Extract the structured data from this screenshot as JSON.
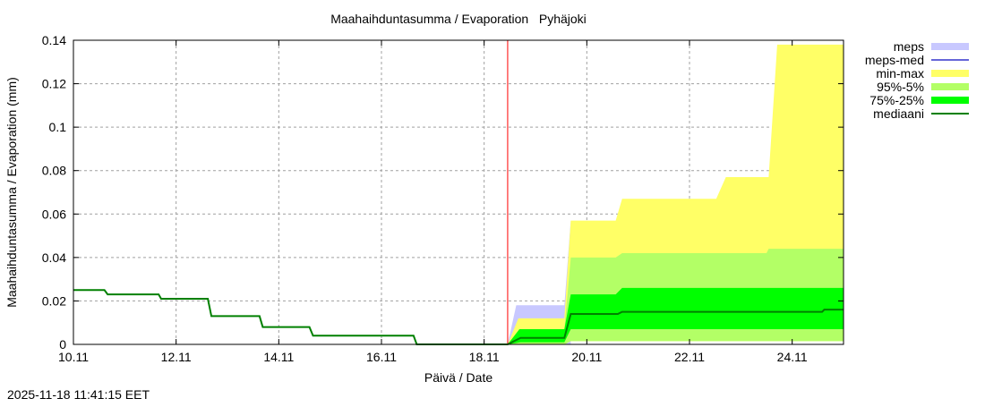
{
  "chart_data": {
    "type": "area",
    "title": "Maahaihduntasumma / Evaporation   Pyhäjoki",
    "xlabel": "Päivä / Date",
    "ylabel": "Maahaihduntasumma / Evaporation (mm)",
    "xlim": [
      "2025-11-10T00:00",
      "2025-11-25T00:00"
    ],
    "ylim": [
      0,
      0.14
    ],
    "x_ticks": [
      {
        "t": "2025-11-10T00:00",
        "label": "10.11"
      },
      {
        "t": "2025-11-12T00:00",
        "label": "12.11"
      },
      {
        "t": "2025-11-14T00:00",
        "label": "14.11"
      },
      {
        "t": "2025-11-16T00:00",
        "label": "16.11"
      },
      {
        "t": "2025-11-18T00:00",
        "label": "18.11"
      },
      {
        "t": "2025-11-20T00:00",
        "label": "20.11"
      },
      {
        "t": "2025-11-22T00:00",
        "label": "22.11"
      },
      {
        "t": "2025-11-24T00:00",
        "label": "24.11"
      }
    ],
    "y_ticks": [
      {
        "v": 0,
        "label": "0"
      },
      {
        "v": 0.02,
        "label": "0.02"
      },
      {
        "v": 0.04,
        "label": "0.04"
      },
      {
        "v": 0.06,
        "label": "0.06"
      },
      {
        "v": 0.08,
        "label": "0.08"
      },
      {
        "v": 0.1,
        "label": "0.1"
      },
      {
        "v": 0.12,
        "label": "0.12"
      },
      {
        "v": 0.14,
        "label": "0.14"
      }
    ],
    "grid": true,
    "legend_position": "right",
    "forecast_start": "2025-11-18T11:00",
    "forecast_line_color": "#ff0000",
    "bands": [
      {
        "name": "meps",
        "color": "#c8c8ff",
        "upper": [
          [
            "2025-11-18T11:00",
            0
          ],
          [
            "2025-11-18T15:00",
            0.018
          ],
          [
            "2025-11-19T13:30",
            0.018
          ],
          [
            "2025-11-19T16:30",
            0.057
          ]
        ],
        "lower": [
          [
            "2025-11-18T11:00",
            0
          ],
          [
            "2025-11-19T16:30",
            0
          ]
        ]
      },
      {
        "name": "min-max",
        "color": "#ffff66",
        "upper": [
          [
            "2025-11-18T11:00",
            0
          ],
          [
            "2025-11-18T16:00",
            0.012
          ],
          [
            "2025-11-19T13:30",
            0.012
          ],
          [
            "2025-11-19T16:30",
            0.057
          ],
          [
            "2025-11-20T13:30",
            0.057
          ],
          [
            "2025-11-20T16:30",
            0.067
          ],
          [
            "2025-11-22T12:30",
            0.067
          ],
          [
            "2025-11-22T17:00",
            0.077
          ],
          [
            "2025-11-23T13:00",
            0.077
          ],
          [
            "2025-11-23T17:00",
            0.138
          ],
          [
            "2025-11-25T00:00",
            0.138
          ]
        ],
        "lower": [
          [
            "2025-11-18T11:00",
            0
          ],
          [
            "2025-11-19T13:30",
            0
          ],
          [
            "2025-11-19T16:30",
            0.0015
          ],
          [
            "2025-11-25T00:00",
            0.0015
          ]
        ]
      },
      {
        "name": "95%-5%",
        "color": "#b3ff66",
        "upper": [
          [
            "2025-11-18T11:00",
            0
          ],
          [
            "2025-11-18T16:30",
            0.007
          ],
          [
            "2025-11-19T13:30",
            0.007
          ],
          [
            "2025-11-19T16:30",
            0.04
          ],
          [
            "2025-11-20T13:30",
            0.04
          ],
          [
            "2025-11-20T16:30",
            0.042
          ],
          [
            "2025-11-23T12:00",
            0.042
          ],
          [
            "2025-11-23T13:00",
            0.044
          ],
          [
            "2025-11-25T00:00",
            0.044
          ]
        ],
        "lower": [
          [
            "2025-11-18T11:00",
            0
          ],
          [
            "2025-11-19T13:30",
            0
          ],
          [
            "2025-11-19T16:30",
            0.0015
          ],
          [
            "2025-11-25T00:00",
            0.0015
          ]
        ]
      },
      {
        "name": "75%-25%",
        "color": "#00ff00",
        "upper": [
          [
            "2025-11-18T11:00",
            0
          ],
          [
            "2025-11-18T16:30",
            0.007
          ],
          [
            "2025-11-19T13:30",
            0.007
          ],
          [
            "2025-11-19T16:30",
            0.023
          ],
          [
            "2025-11-20T13:30",
            0.023
          ],
          [
            "2025-11-20T16:30",
            0.026
          ],
          [
            "2025-11-25T00:00",
            0.026
          ]
        ],
        "lower": [
          [
            "2025-11-18T11:00",
            0
          ],
          [
            "2025-11-18T17:00",
            0.001
          ],
          [
            "2025-11-19T13:30",
            0.001
          ],
          [
            "2025-11-19T16:30",
            0.007
          ],
          [
            "2025-11-25T00:00",
            0.007
          ]
        ]
      }
    ],
    "lines": [
      {
        "name": "meps-med",
        "color": "#3333cc",
        "points": []
      },
      {
        "name": "mediaani",
        "color": "#008000",
        "points": [
          [
            "2025-11-10T00:00",
            0.025
          ],
          [
            "2025-11-10T14:30",
            0.025
          ],
          [
            "2025-11-10T16:00",
            0.023
          ],
          [
            "2025-11-11T15:50",
            0.023
          ],
          [
            "2025-11-11T17:00",
            0.021
          ],
          [
            "2025-11-12T14:50",
            0.021
          ],
          [
            "2025-11-12T16:30",
            0.013
          ],
          [
            "2025-11-13T15:00",
            0.013
          ],
          [
            "2025-11-13T16:30",
            0.008
          ],
          [
            "2025-11-14T14:20",
            0.008
          ],
          [
            "2025-11-14T16:00",
            0.004
          ],
          [
            "2025-11-16T15:00",
            0.004
          ],
          [
            "2025-11-16T16:30",
            0
          ],
          [
            "2025-11-18T11:00",
            0
          ],
          [
            "2025-11-18T17:00",
            0.003
          ],
          [
            "2025-11-19T13:30",
            0.003
          ],
          [
            "2025-11-19T16:30",
            0.014
          ],
          [
            "2025-11-20T14:30",
            0.014
          ],
          [
            "2025-11-20T16:30",
            0.015
          ],
          [
            "2025-11-24T14:00",
            0.015
          ],
          [
            "2025-11-24T15:00",
            0.016
          ],
          [
            "2025-11-25T00:00",
            0.016
          ]
        ]
      }
    ],
    "legend": [
      {
        "name": "meps",
        "color": "#c8c8ff",
        "kind": "band"
      },
      {
        "name": "meps-med",
        "color": "#3333cc",
        "kind": "line"
      },
      {
        "name": "min-max",
        "color": "#ffff66",
        "kind": "band"
      },
      {
        "name": "95%-5%",
        "color": "#b3ff66",
        "kind": "band"
      },
      {
        "name": "75%-25%",
        "color": "#00ff00",
        "kind": "band"
      },
      {
        "name": "mediaani",
        "color": "#008000",
        "kind": "line"
      }
    ]
  },
  "footer": {
    "timestamp": "2025-11-18 11:41:15 EET"
  }
}
